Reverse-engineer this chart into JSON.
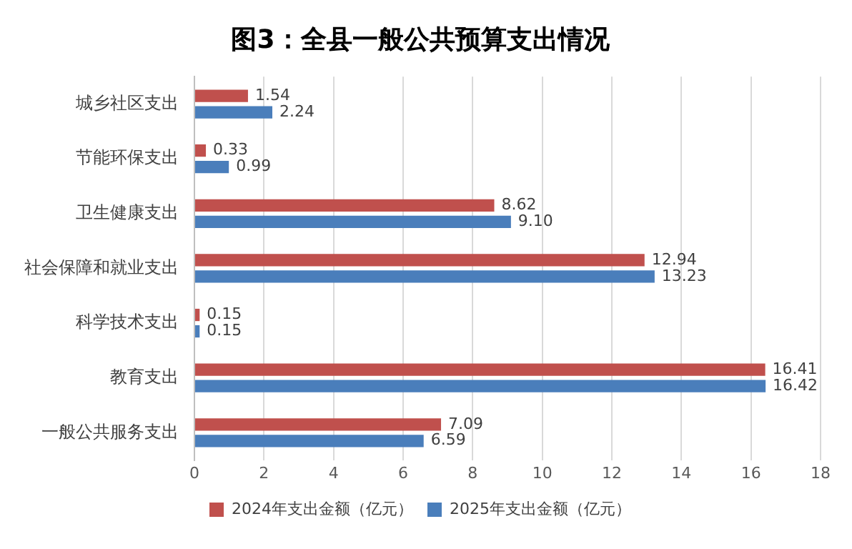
{
  "chart_data": {
    "type": "bar",
    "orientation": "horizontal",
    "title": "图3：全县一般公共预算支出情况",
    "categories": [
      "城乡社区支出",
      "节能环保支出",
      "卫生健康支出",
      "社会保障和就业支出",
      "科学技术支出",
      "教育支出",
      "一般公共服务支出"
    ],
    "series": [
      {
        "name": "2024年支出金额（亿元）",
        "color": "#c0504d",
        "values": [
          1.54,
          0.33,
          8.62,
          12.94,
          0.15,
          16.41,
          7.09
        ],
        "value_labels": [
          "1.54",
          "0.33",
          "8.62",
          "12.94",
          "0.15",
          "16.41",
          "7.09"
        ]
      },
      {
        "name": "2025年支出金额（亿元）",
        "color": "#4a7ebb",
        "values": [
          2.24,
          0.99,
          9.1,
          13.23,
          0.15,
          16.42,
          6.59
        ],
        "value_labels": [
          "2.24",
          "0.99",
          "9.10",
          "13.23",
          "0.15",
          "16.42",
          "6.59"
        ]
      }
    ],
    "xlim": [
      0,
      18
    ],
    "xticks": [
      0,
      2,
      4,
      6,
      8,
      10,
      12,
      14,
      16,
      18
    ],
    "grid": "x",
    "legend": "bottom"
  }
}
